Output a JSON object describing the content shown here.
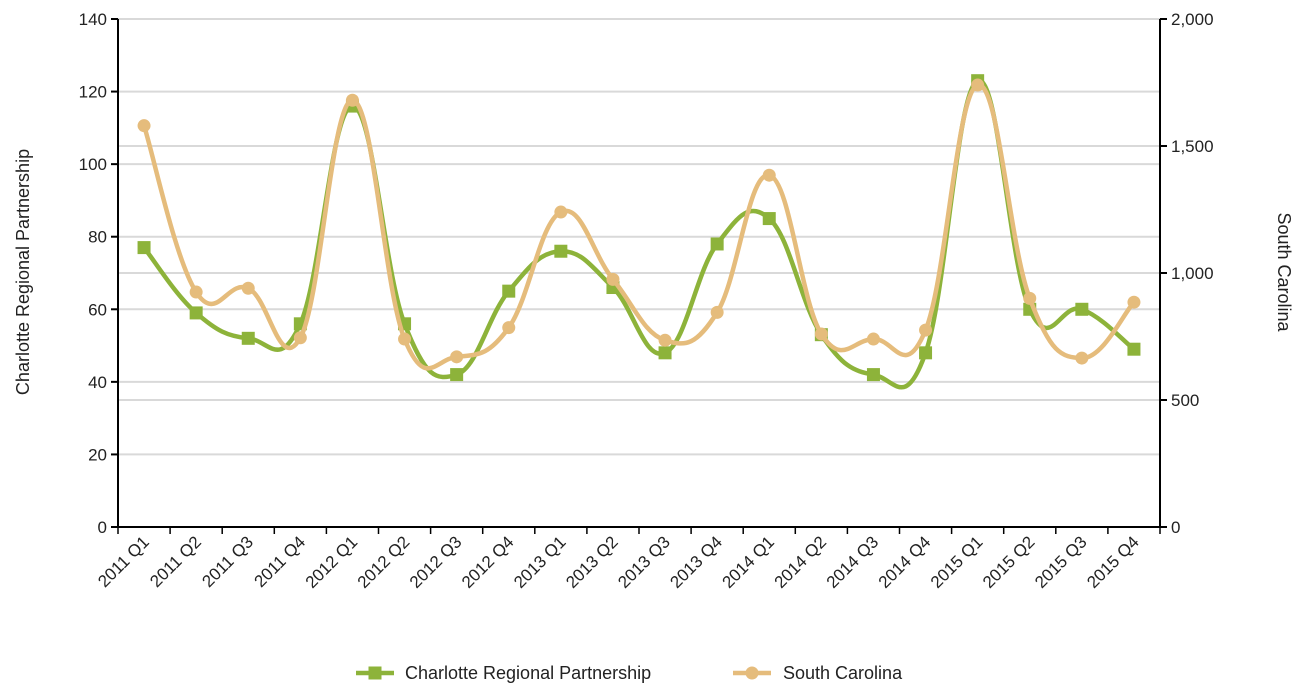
{
  "chart_data": {
    "type": "line",
    "smooth": true,
    "categories": [
      "2011 Q1",
      "2011 Q2",
      "2011 Q3",
      "2011 Q4",
      "2012 Q1",
      "2012 Q2",
      "2012 Q3",
      "2012 Q4",
      "2013 Q1",
      "2013 Q2",
      "2013 Q3",
      "2013 Q4",
      "2014 Q1",
      "2014 Q2",
      "2014 Q3",
      "2014 Q4",
      "2015 Q1",
      "2015 Q2",
      "2015 Q3",
      "2015 Q4"
    ],
    "ylabel": "Charlotte Regional Partnership",
    "y2label": "South Carolina",
    "ylim": [
      0,
      140
    ],
    "y2lim": [
      0,
      2000
    ],
    "yticks": [
      0,
      20,
      40,
      60,
      80,
      100,
      120,
      140
    ],
    "ytick_labels": [
      "0",
      "20",
      "40",
      "60",
      "80",
      "100",
      "120",
      "140"
    ],
    "y2ticks": [
      0,
      500,
      1000,
      1500,
      2000
    ],
    "y2tick_labels": [
      "0",
      "500",
      "1,000",
      "1,500",
      "2,000"
    ],
    "grid": true,
    "legend_position": "bottom-center",
    "series": [
      {
        "name": "Charlotte Regional Partnership",
        "axis": "left",
        "marker": "square",
        "color": "#8db33a",
        "values": [
          77,
          59,
          52,
          56,
          116,
          56,
          42,
          65,
          76,
          66,
          48,
          78,
          85,
          53,
          42,
          48,
          123,
          60,
          60,
          49
        ]
      },
      {
        "name": "South Carolina",
        "axis": "right",
        "marker": "circle",
        "color": "#e5bc7c",
        "values": [
          1580,
          925,
          940,
          745,
          1680,
          740,
          670,
          785,
          1240,
          975,
          735,
          845,
          1385,
          760,
          740,
          775,
          1740,
          900,
          665,
          885
        ]
      }
    ]
  }
}
